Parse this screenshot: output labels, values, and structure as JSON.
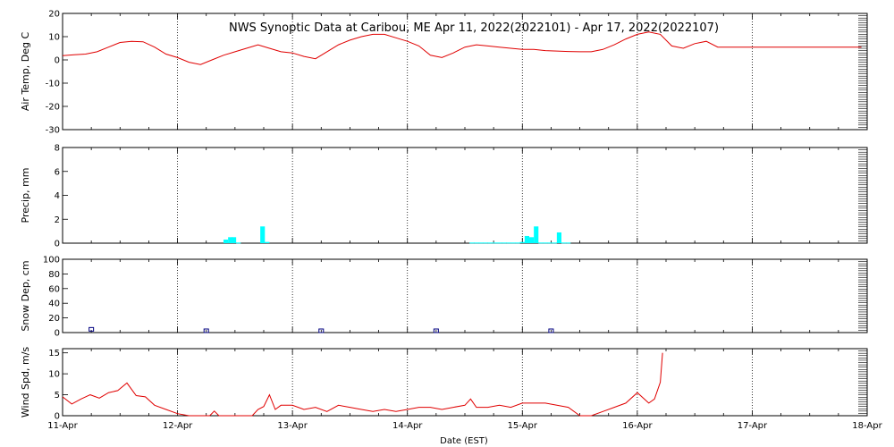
{
  "chart_data": {
    "title": "NWS Synoptic Data at Caribou, ME   Apr 11, 2022(2022101) - Apr 17, 2022(2022107)",
    "xlabel": "Date (EST)",
    "x_ticks": [
      "11-Apr",
      "12-Apr",
      "13-Apr",
      "14-Apr",
      "15-Apr",
      "16-Apr",
      "17-Apr",
      "18-Apr"
    ],
    "xlim": [
      0,
      7
    ],
    "panels": [
      {
        "id": "air-temp",
        "type": "line",
        "ylabel": "Air Temp, Deg C",
        "ylim": [
          -30,
          20
        ],
        "y_ticks": [
          20,
          10,
          0,
          -10,
          -20,
          -30
        ],
        "color": "#e00000",
        "x": [
          0,
          0.1,
          0.2,
          0.3,
          0.4,
          0.5,
          0.6,
          0.7,
          0.8,
          0.9,
          1.0,
          1.1,
          1.2,
          1.3,
          1.4,
          1.5,
          1.6,
          1.7,
          1.8,
          1.9,
          2.0,
          2.1,
          2.2,
          2.3,
          2.4,
          2.5,
          2.6,
          2.7,
          2.8,
          2.9,
          3.0,
          3.1,
          3.2,
          3.3,
          3.4,
          3.5,
          3.6,
          3.7,
          3.8,
          3.9,
          4.0,
          4.1,
          4.2,
          4.3,
          4.4,
          4.5,
          4.6,
          4.7,
          4.8,
          4.9,
          5.0,
          5.1,
          5.2,
          5.3,
          5.4,
          5.5,
          5.6,
          5.7,
          5.8,
          5.9,
          6.0,
          6.1,
          6.2,
          6.3,
          6.4,
          6.5,
          6.6,
          6.7,
          6.8,
          6.9,
          6.95
        ],
        "y": [
          1.8,
          2.2,
          2.5,
          3.5,
          5.5,
          7.5,
          8,
          7.8,
          5.5,
          2.5,
          1,
          -1,
          -2,
          0,
          2,
          3.5,
          5,
          6.5,
          5,
          3.5,
          3,
          1.5,
          0.5,
          3.5,
          6.5,
          8.5,
          10,
          11,
          11,
          9.5,
          8,
          6,
          2,
          1,
          3,
          5.5,
          6.5,
          6,
          5.5,
          5,
          4.5,
          4.5,
          4,
          3.8,
          3.6,
          3.5,
          3.5,
          4.5,
          6.5,
          9,
          11,
          12,
          11,
          6,
          5,
          7,
          8,
          5.5,
          5.5,
          5.5,
          5.5,
          5.5,
          5.5,
          5.5,
          5.5,
          5.5,
          5.5,
          5.5,
          5.5,
          5.5,
          5.5
        ]
      },
      {
        "id": "precip",
        "type": "bar",
        "ylabel": "Precip, mm",
        "ylim": [
          0,
          8
        ],
        "y_ticks": [
          8,
          6,
          4,
          2,
          0
        ],
        "color": "#00ffff",
        "x": [
          1.4,
          1.44,
          1.47,
          1.51,
          1.72,
          1.76,
          3.54,
          3.58,
          3.62,
          3.66,
          3.7,
          3.74,
          3.78,
          3.82,
          3.86,
          3.9,
          3.94,
          3.98,
          4.02,
          4.06,
          4.1,
          4.14,
          4.18,
          4.22,
          4.26,
          4.3,
          4.34,
          4.38
        ],
        "values": [
          0.3,
          0.5,
          0.5,
          0.05,
          1.4,
          0.1,
          0.05,
          0.05,
          0.05,
          0.05,
          0.05,
          0.05,
          0.05,
          0.05,
          0.05,
          0.05,
          0.05,
          0.1,
          0.6,
          0.5,
          1.4,
          0.05,
          0.05,
          0.05,
          0.05,
          0.9,
          0.05,
          0.05
        ]
      },
      {
        "id": "snow-depth",
        "type": "scatter",
        "ylabel": "Snow Dep, cm",
        "ylim": [
          0,
          100
        ],
        "y_ticks": [
          100,
          80,
          60,
          40,
          20,
          0
        ],
        "color": "#000080",
        "x": [
          0.25,
          1.25,
          2.25,
          3.25,
          4.25
        ],
        "values": [
          2,
          0,
          0,
          0,
          0
        ]
      },
      {
        "id": "wind-speed",
        "type": "line",
        "ylabel": "Wind Spd, m/s",
        "ylim": [
          0,
          16
        ],
        "y_ticks": [
          15,
          10,
          5,
          0
        ],
        "color": "#e00000",
        "x": [
          0,
          0.08,
          0.16,
          0.24,
          0.32,
          0.4,
          0.48,
          0.56,
          0.64,
          0.72,
          0.8,
          0.9,
          1.0,
          1.1,
          1.2,
          1.28,
          1.32,
          1.36,
          1.45,
          1.55,
          1.65,
          1.7,
          1.75,
          1.8,
          1.85,
          1.9,
          2.0,
          2.1,
          2.2,
          2.3,
          2.4,
          2.5,
          2.6,
          2.7,
          2.8,
          2.9,
          3.0,
          3.1,
          3.2,
          3.3,
          3.4,
          3.5,
          3.55,
          3.6,
          3.7,
          3.8,
          3.9,
          4.0,
          4.1,
          4.2,
          4.3,
          4.4,
          4.5,
          4.6,
          4.7,
          4.8,
          4.9,
          5.0,
          5.1,
          5.15,
          5.2,
          5.22
        ],
        "values": [
          4.5,
          2.8,
          4,
          5,
          4.2,
          5.5,
          6,
          7.8,
          4.8,
          4.5,
          2.5,
          1.5,
          0.5,
          0,
          0,
          0,
          1.1,
          0,
          0,
          0,
          0,
          1.5,
          2.2,
          5,
          1.5,
          2.5,
          2.5,
          1.5,
          2,
          1,
          2.5,
          2,
          1.5,
          1,
          1.5,
          1,
          1.5,
          2,
          2,
          1.5,
          2,
          2.5,
          4,
          2,
          2,
          2.5,
          2,
          3,
          3,
          3,
          2.5,
          2,
          0,
          0,
          1,
          2,
          3,
          5.5,
          3,
          4,
          8,
          15
        ]
      }
    ]
  }
}
